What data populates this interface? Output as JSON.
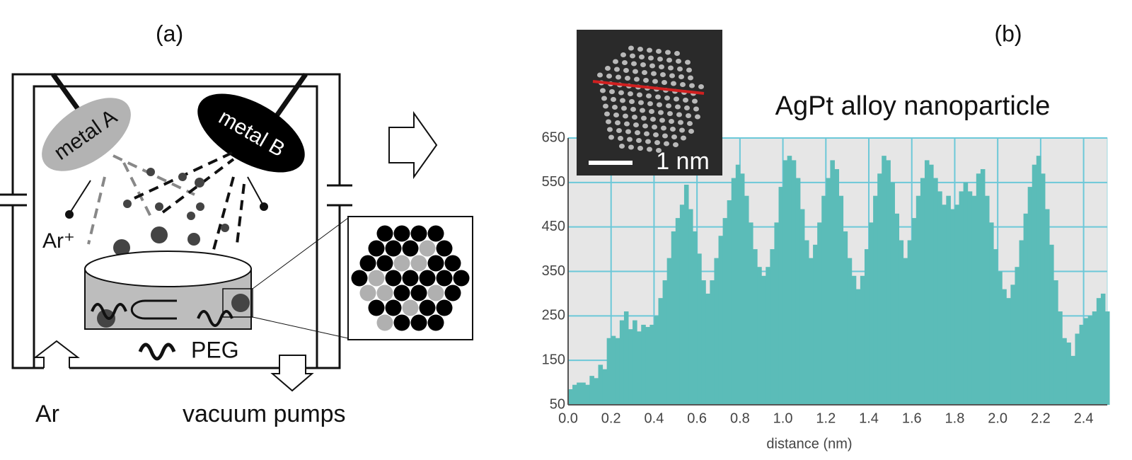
{
  "panel_a": {
    "label": "(a)",
    "metal_a": "metal A",
    "metal_b": "metal B",
    "ion": "Ar⁺",
    "peg": "PEG",
    "gas": "Ar",
    "pumps": "vacuum pumps"
  },
  "chart_data": {
    "type": "bar",
    "panel_label": "(b)",
    "title": "AgPt alloy nanoparticle",
    "xlabel": "distance (nm)",
    "inset_scale": "1 nm",
    "color": "#5bbcb8",
    "grid": true,
    "xlim": [
      0,
      2.51
    ],
    "ylim": [
      50,
      650
    ],
    "yticks": [
      50,
      150,
      250,
      350,
      450,
      550,
      650
    ],
    "xticks": [
      {
        "value": 0,
        "label": "0.0"
      },
      {
        "value": 0.2,
        "label": "0.2"
      },
      {
        "value": 0.4,
        "label": "0.4"
      },
      {
        "value": 0.6,
        "label": "0.6"
      },
      {
        "value": 0.8,
        "label": "0.8"
      },
      {
        "value": 1,
        "label": "1.0"
      },
      {
        "value": 1.2,
        "label": "1.2"
      },
      {
        "value": 1.4,
        "label": "1.4"
      },
      {
        "value": 1.6,
        "label": "1.6"
      },
      {
        "value": 1.8,
        "label": "1.8"
      },
      {
        "value": 2,
        "label": "2.0"
      },
      {
        "value": 2.2,
        "label": "2.2"
      },
      {
        "value": 2.4,
        "label": "2.4"
      }
    ],
    "x": [
      0,
      0.02,
      0.04,
      0.06,
      0.08,
      0.1,
      0.12,
      0.14,
      0.16,
      0.18,
      0.2,
      0.22,
      0.24,
      0.26,
      0.28,
      0.3,
      0.32,
      0.34,
      0.36,
      0.38,
      0.4,
      0.42,
      0.44,
      0.46,
      0.48,
      0.5,
      0.52,
      0.54,
      0.56,
      0.58,
      0.6,
      0.62,
      0.64,
      0.66,
      0.68,
      0.7,
      0.72,
      0.74,
      0.76,
      0.78,
      0.8,
      0.82,
      0.84,
      0.86,
      0.88,
      0.9,
      0.92,
      0.94,
      0.96,
      0.98,
      1,
      1.02,
      1.04,
      1.06,
      1.08,
      1.1,
      1.12,
      1.14,
      1.16,
      1.18,
      1.2,
      1.22,
      1.24,
      1.26,
      1.28,
      1.3,
      1.32,
      1.34,
      1.36,
      1.38,
      1.4,
      1.42,
      1.44,
      1.46,
      1.48,
      1.5,
      1.52,
      1.54,
      1.56,
      1.58,
      1.6,
      1.62,
      1.64,
      1.66,
      1.68,
      1.7,
      1.72,
      1.74,
      1.76,
      1.78,
      1.8,
      1.82,
      1.84,
      1.86,
      1.88,
      1.9,
      1.92,
      1.94,
      1.96,
      1.98,
      2,
      2.02,
      2.04,
      2.06,
      2.08,
      2.1,
      2.12,
      2.14,
      2.16,
      2.18,
      2.2,
      2.22,
      2.24,
      2.26,
      2.28,
      2.3,
      2.32,
      2.34,
      2.36,
      2.38,
      2.4,
      2.42,
      2.44,
      2.46,
      2.48,
      2.5
    ],
    "values": [
      85,
      95,
      100,
      100,
      95,
      115,
      110,
      140,
      130,
      200,
      205,
      200,
      240,
      260,
      220,
      240,
      215,
      230,
      225,
      230,
      250,
      290,
      330,
      380,
      440,
      470,
      500,
      545,
      490,
      440,
      390,
      330,
      300,
      330,
      380,
      430,
      470,
      510,
      560,
      590,
      570,
      520,
      460,
      400,
      360,
      340,
      360,
      400,
      460,
      540,
      600,
      610,
      600,
      560,
      490,
      420,
      380,
      410,
      460,
      520,
      560,
      600,
      580,
      520,
      440,
      380,
      340,
      310,
      340,
      400,
      460,
      520,
      570,
      610,
      600,
      550,
      480,
      420,
      380,
      420,
      470,
      520,
      560,
      600,
      590,
      560,
      530,
      500,
      520,
      490,
      500,
      530,
      550,
      530,
      520,
      570,
      580,
      520,
      460,
      400,
      350,
      310,
      290,
      320,
      360,
      420,
      480,
      540,
      590,
      610,
      570,
      490,
      410,
      330,
      260,
      200,
      190,
      160,
      210,
      230,
      245,
      250,
      260,
      290,
      300,
      260
    ]
  }
}
